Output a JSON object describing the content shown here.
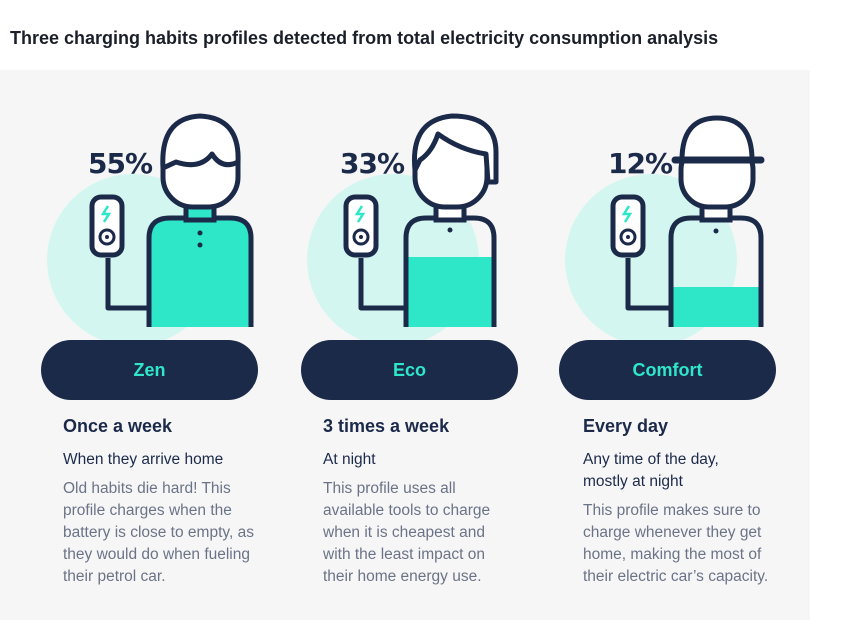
{
  "title": "Three charging habits profiles detected from total electricity consumption analysis",
  "colors": {
    "navy": "#1c2a4a",
    "mint": "#2ee6c8",
    "mint_circle": "#d3f7f0",
    "panel": "#f6f6f7"
  },
  "profiles": [
    {
      "percent": "55%",
      "percent_value": 55,
      "name": "Zen",
      "battery_level": 1.0,
      "head": "short-hair",
      "frequency": "Once a week",
      "timing": "When they arrive home",
      "description": "Old habits die hard! This profile charges when the battery is close to empty, as they would do when fueling their petrol car."
    },
    {
      "percent": "33%",
      "percent_value": 33,
      "name": "Eco",
      "battery_level": 0.55,
      "head": "side-fringe",
      "frequency": "3 times a week",
      "timing": "At night",
      "description": "This profile uses all available tools to charge when it is cheapest and with the least impact on their home energy use."
    },
    {
      "percent": "12%",
      "percent_value": 12,
      "name": "Comfort",
      "battery_level": 0.2,
      "head": "cap",
      "frequency": "Every day",
      "timing": "Any time of the day, mostly at night",
      "description": "This profile makes sure to charge whenever they get home, making the most of their electric car’s capacity."
    }
  ]
}
